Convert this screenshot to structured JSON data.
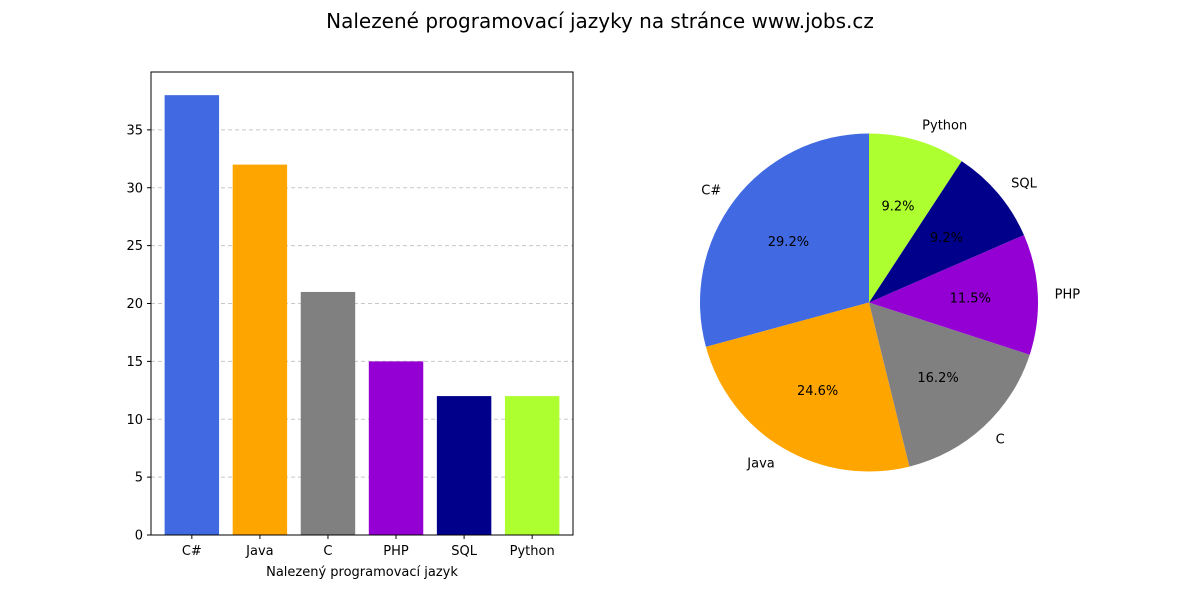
{
  "title": "Nalezené programovací jazyky na stránce www.jobs.cz",
  "chart_data": [
    {
      "type": "bar",
      "categories": [
        "C#",
        "Java",
        "C",
        "PHP",
        "SQL",
        "Python"
      ],
      "values": [
        38,
        32,
        21,
        15,
        12,
        12
      ],
      "colors": [
        "#4169e1",
        "#ffa500",
        "#808080",
        "#9400d3",
        "#00008b",
        "#adff2f"
      ],
      "xlabel": "Nalezený programovací jazyk",
      "ylabel": "",
      "ylim": [
        0,
        40
      ],
      "yticks": [
        0,
        5,
        10,
        15,
        20,
        25,
        30,
        35
      ],
      "grid": "y-dashed"
    },
    {
      "type": "pie",
      "labels": [
        "C#",
        "Java",
        "C",
        "PHP",
        "SQL",
        "Python"
      ],
      "values": [
        38,
        32,
        21,
        15,
        12,
        12
      ],
      "percent_labels": [
        "29.2%",
        "24.6%",
        "16.2%",
        "11.5%",
        "9.2%",
        "9.2%"
      ],
      "colors": [
        "#4169e1",
        "#ffa500",
        "#808080",
        "#9400d3",
        "#00008b",
        "#adff2f"
      ],
      "start_angle_deg": 90,
      "direction": "counterclockwise"
    }
  ]
}
